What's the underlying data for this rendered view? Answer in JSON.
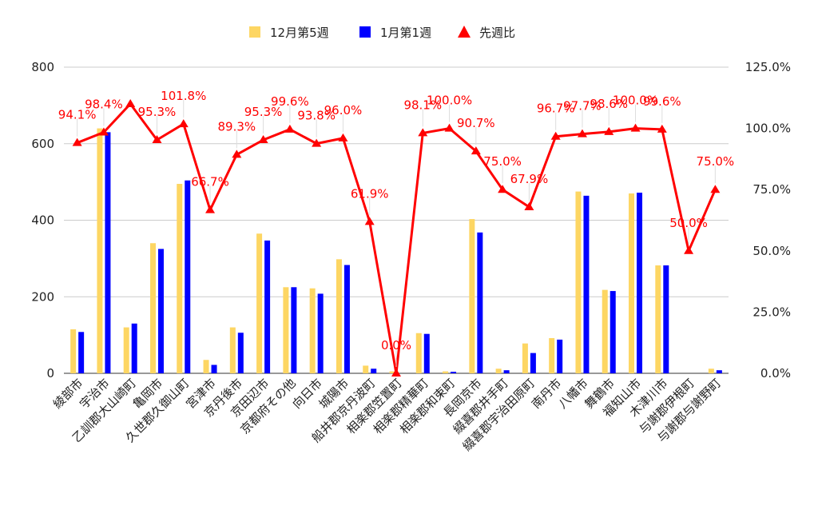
{
  "chart_data": {
    "type": "bar",
    "categories": [
      "綾部市",
      "宇治市",
      "乙訓郡大山崎町",
      "亀岡市",
      "久世郡久御山町",
      "宮津市",
      "京丹後市",
      "京田辺市",
      "京都府その他",
      "向日市",
      "城陽市",
      "船井郡京丹波町",
      "相楽郡笠置町",
      "相楽郡精華町",
      "相楽郡和束町",
      "長岡京市",
      "綴喜郡井手町",
      "綴喜郡宇治田原町",
      "南丹市",
      "八幡市",
      "舞鶴市",
      "福知山市",
      "木津川市",
      "与謝郡伊根町",
      "与謝郡与謝野町"
    ],
    "series": [
      {
        "name": "12月第5週",
        "type": "bar",
        "axis": "left",
        "color": "#fdd663",
        "values": [
          115,
          640,
          120,
          340,
          495,
          35,
          120,
          365,
          225,
          222,
          298,
          20,
          5,
          105,
          5,
          403,
          12,
          78,
          92,
          475,
          218,
          470,
          282,
          0,
          12
        ]
      },
      {
        "name": "1月第1週",
        "type": "bar",
        "axis": "left",
        "color": "#0000ff",
        "values": [
          108,
          630,
          130,
          325,
          504,
          22,
          106,
          347,
          225,
          208,
          283,
          12,
          0,
          103,
          4,
          368,
          8,
          53,
          88,
          464,
          215,
          472,
          282,
          0,
          8
        ]
      },
      {
        "name": "先週比",
        "type": "line",
        "axis": "right",
        "color": "#ff0000",
        "values": [
          94.1,
          98.4,
          110.0,
          95.3,
          101.8,
          66.7,
          89.3,
          95.3,
          99.6,
          93.8,
          96.0,
          61.9,
          0.0,
          98.1,
          100.0,
          90.7,
          75.0,
          67.9,
          96.7,
          97.7,
          98.6,
          100.0,
          99.6,
          50.0,
          75.0
        ],
        "labels": [
          "94.1%",
          "98.4%",
          "",
          "95.3%",
          "101.8%",
          "66.7%",
          "89.3%",
          "95.3%",
          "99.6%",
          "93.8%",
          "96.0%",
          "61.9%",
          "0.0%",
          "98.1%",
          "100.0%",
          "90.7%",
          "75.0%",
          "67.9%",
          "96.7%",
          "97.7%",
          "98.6%",
          "100.0%",
          "99.6%",
          "50.0%",
          "75.0%"
        ]
      }
    ],
    "ylim": [
      0,
      800
    ],
    "yticks": [
      "0",
      "200",
      "400",
      "600",
      "800"
    ],
    "y2lim": [
      0,
      125
    ],
    "y2ticks": [
      "0.0%",
      "25.0%",
      "50.0%",
      "75.0%",
      "100.0%",
      "125.0%"
    ],
    "legend_position": "top",
    "grid": true
  }
}
